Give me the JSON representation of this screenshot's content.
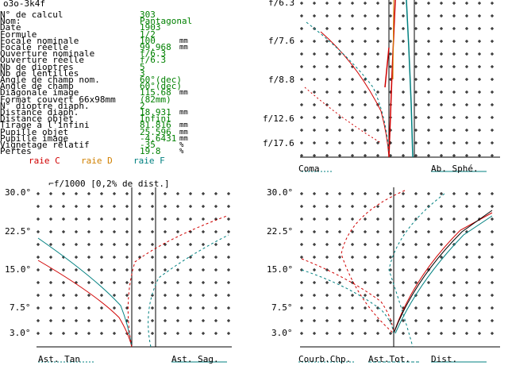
{
  "window_title": "o3o-3k4f",
  "params": [
    {
      "label": "N° de calcul",
      "value": "303",
      "unit": ""
    },
    {
      "label": "Nom:",
      "value": "Pantagonal",
      "unit": ""
    },
    {
      "label": "Date",
      "value": "1903",
      "unit": ""
    },
    {
      "label": "Formule",
      "value": "1/2",
      "unit": ""
    },
    {
      "label": "Focale nominale",
      "value": "100",
      "unit": "mm"
    },
    {
      "label": "Focale réelle",
      "value": "99.968",
      "unit": "mm"
    },
    {
      "label": "Ouverture nominale",
      "value": "f/6.3",
      "unit": ""
    },
    {
      "label": "Ouverture réelle",
      "value": "f/6.3",
      "unit": ""
    },
    {
      "label": "Nb de dioptres",
      "value": "5",
      "unit": ""
    },
    {
      "label": "Nb de lentilles",
      "value": "3",
      "unit": ""
    },
    {
      "label": "Angle de champ nom.",
      "value": "60°(dec)",
      "unit": ""
    },
    {
      "label": "Angle de champ",
      "value": "60°(dec)",
      "unit": ""
    },
    {
      "label": "Diagonale image",
      "value": "115.68",
      "unit": "mm"
    },
    {
      "label": "Format couvert 66x98mm",
      "value": "(82mm)",
      "unit": ""
    },
    {
      "label": "N° dioptre diaph.",
      "value": "2",
      "unit": ""
    },
    {
      "label": "Distance diaph.",
      "value": "18.931",
      "unit": "mm"
    },
    {
      "label": "Distance objet",
      "value": "Infini",
      "unit": ""
    },
    {
      "label": "Tirage à l'infini",
      "value": "81.816",
      "unit": "mm"
    },
    {
      "label": "Pupille objet",
      "value": "25.596",
      "unit": "mm"
    },
    {
      "label": "Pupille image",
      "value": "-4.6431",
      "unit": "mm"
    },
    {
      "label": "Vignetage relatif",
      "value": "-35",
      "unit": "%"
    },
    {
      "label": "Pertes",
      "value": "19.8",
      "unit": "%"
    }
  ],
  "legend": {
    "raie_c": "raie C",
    "raie_d": "raie D",
    "raie_f": "raie F",
    "scale_note": "f/1000 [0,2% de dist.]",
    "colors": {
      "c": "#d00000",
      "d": "#d08000",
      "f": "#008080"
    }
  },
  "top_right": {
    "aperture_labels": [
      "f/6.3",
      "f/7.6",
      "f/8.8",
      "f/12.6",
      "f/17.6"
    ],
    "coma_label": "Coma",
    "spherical_label": "Ab. Sphé."
  },
  "bottom_left": {
    "field_labels": [
      "30.0°",
      "22.5°",
      "15.0°",
      "7.5°",
      "3.0°"
    ],
    "tan_label": "Ast. Tan",
    "sag_label": "Ast. Sag."
  },
  "bottom_right": {
    "field_labels": [
      "30.0°",
      "22.5°",
      "15.0°",
      "7.5°",
      "3.0°"
    ],
    "curv_label": "Courb.Chp.",
    "ast_tot_label": "Ast.Tot.",
    "dist_label": "Dist."
  }
}
